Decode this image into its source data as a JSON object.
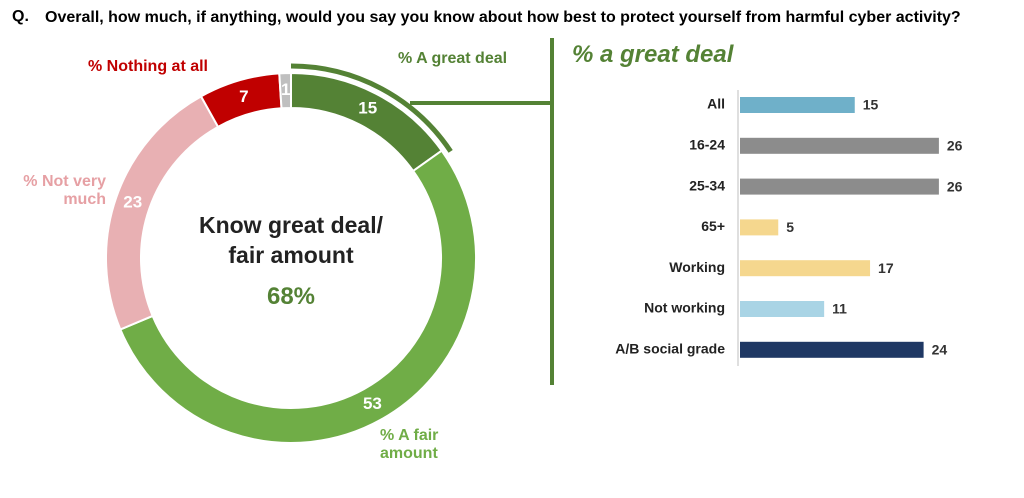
{
  "question_label": "Q.",
  "question": "Overall, how much, if anything, would you say you know about how best to protect yourself from harmful cyber activity?",
  "chart_data": [
    {
      "type": "donut",
      "center_label": "Know great deal/ fair amount",
      "center_value": "68%",
      "categories": [
        "% A great deal",
        "% A fair amount",
        "% Not very much",
        "% Nothing at all",
        null
      ],
      "values": [
        15,
        53,
        23,
        7,
        1
      ],
      "colors": [
        "#548235",
        "#70ad47",
        "#e8b0b3",
        "#c00000",
        "#bfbfbf"
      ],
      "label_colors": [
        "#548235",
        "#70ad47",
        "#e6a0a4",
        "#c00000",
        "#bfbfbf"
      ]
    },
    {
      "type": "hbar",
      "title": "% a great deal",
      "categories": [
        "All",
        "16-24",
        "25-34",
        "65+",
        "Working",
        "Not working",
        "A/B social grade"
      ],
      "values": [
        15,
        26,
        26,
        5,
        17,
        11,
        24
      ],
      "colors": [
        "#6fb0c9",
        "#8c8c8c",
        "#8c8c8c",
        "#f5d78e",
        "#f5d78e",
        "#a9d4e5",
        "#1f3864"
      ]
    }
  ]
}
